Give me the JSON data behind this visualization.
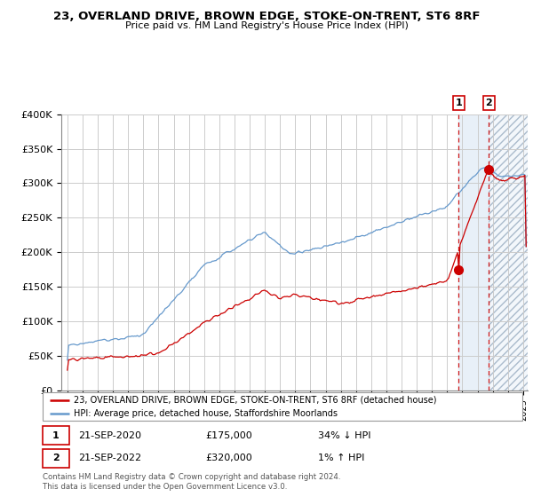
{
  "title": "23, OVERLAND DRIVE, BROWN EDGE, STOKE-ON-TRENT, ST6 8RF",
  "subtitle": "Price paid vs. HM Land Registry's House Price Index (HPI)",
  "legend_label_red": "23, OVERLAND DRIVE, BROWN EDGE, STOKE-ON-TRENT, ST6 8RF (detached house)",
  "legend_label_blue": "HPI: Average price, detached house, Staffordshire Moorlands",
  "footer": "Contains HM Land Registry data © Crown copyright and database right 2024.\nThis data is licensed under the Open Government Licence v3.0.",
  "transaction1_label": "21-SEP-2020",
  "transaction1_price": "£175,000",
  "transaction1_hpi": "34% ↓ HPI",
  "transaction2_label": "21-SEP-2022",
  "transaction2_price": "£320,000",
  "transaction2_hpi": "1% ↑ HPI",
  "red_color": "#cc0000",
  "blue_color": "#6699cc",
  "shading_color": "#e8f0f8",
  "hatch_color": "#bbccdd",
  "ylim": [
    0,
    400000
  ],
  "yticks": [
    0,
    50000,
    100000,
    150000,
    200000,
    250000,
    300000,
    350000,
    400000
  ],
  "ytick_labels": [
    "£0",
    "£50K",
    "£100K",
    "£150K",
    "£200K",
    "£250K",
    "£300K",
    "£350K",
    "£400K"
  ],
  "start_year": 1995.0,
  "end_year": 2025.2,
  "t1_year": 2020.75,
  "t2_year": 2022.75,
  "t1_price": 175000,
  "t2_price": 320000
}
